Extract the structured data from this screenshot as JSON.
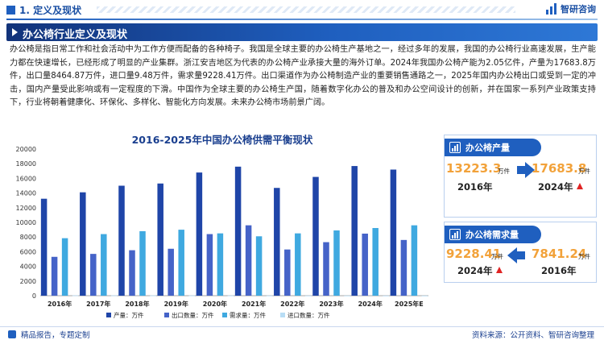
{
  "header": {
    "section_title": "1. 定义及现状",
    "brand_name": "智研咨询"
  },
  "banner": {
    "title": "办公椅行业定义及现状"
  },
  "paragraph": "办公椅是指日常工作和社会活动中为工作方便而配备的各种椅子。我国是全球主要的办公椅生产基地之一，经过多年的发展，我国的办公椅行业高速发展，生产能力都在快速增长，已经形成了明显的产业集群。浙江安吉地区为代表的办公椅产业承接大量的海外订单。2024年我国办公椅产能为2.05亿件，产量为17683.8万件，出口量8464.87万件，进口量9.48万件，需求量9228.41万件。出口渠道作为办公椅制造产业的重要销售通路之一，2025年国内办公椅出口或受到一定的冲击，国内产量受此影响或有一定程度的下滑。中国作为全球主要的办公椅生产国，随着数字化办公的普及和办公空间设计的创新，并在国家一系列产业政策支持下，行业将朝着健康化、环保化、多样化、智能化方向发展。未来办公椅市场前景广阔。",
  "chart_data": {
    "type": "bar",
    "title": "2016-2025年中国办公椅供需平衡现状",
    "categories": [
      "2016年",
      "2017年",
      "2018年",
      "2019年",
      "2020年",
      "2021年",
      "2022年",
      "2023年",
      "2024年",
      "2025年E"
    ],
    "ylim": [
      0,
      20000
    ],
    "yticks": [
      0,
      2000,
      4000,
      6000,
      8000,
      10000,
      12000,
      14000,
      16000,
      18000,
      20000
    ],
    "series": [
      {
        "name": "产量：万件",
        "color": "#1f45a8",
        "values": [
          13223.3,
          14100,
          15000,
          15300,
          16800,
          17600,
          14700,
          16200,
          17683.8,
          17200
        ]
      },
      {
        "name": "出口数量：万件",
        "color": "#4563c8",
        "values": [
          5300,
          5700,
          6200,
          6400,
          8400,
          9600,
          6300,
          7300,
          8464.87,
          7600
        ]
      },
      {
        "name": "需求量：万件",
        "color": "#3fa9e0",
        "values": [
          7841.24,
          8400,
          8800,
          9000,
          8500,
          8100,
          8500,
          8900,
          9228.41,
          9600
        ]
      },
      {
        "name": "进口数量：万件",
        "color": "#b8ddf5",
        "values": [
          40,
          40,
          35,
          30,
          25,
          20,
          15,
          12,
          9.48,
          8
        ]
      }
    ],
    "grid": false,
    "legend_position": "bottom"
  },
  "cards": {
    "production": {
      "title": "办公椅产量",
      "from_value": "13223.3",
      "from_unit": "万件",
      "from_year": "2016年",
      "to_value": "17683.8",
      "to_unit": "万件",
      "to_year": "2024年"
    },
    "demand": {
      "title": "办公椅需求量",
      "left_value": "9228.41",
      "left_unit": "万件",
      "left_year": "2024年",
      "right_value": "7841.24",
      "right_unit": "万件",
      "right_year": "2016年"
    }
  },
  "footer": {
    "left_text": "精品报告，专题定制",
    "source_text": "资料来源：公开资料、智研咨询整理"
  },
  "colors": {
    "primary": "#1f5fbf",
    "dark": "#12337a",
    "accent_orange": "#f2a23a",
    "up_red": "#e02424"
  }
}
